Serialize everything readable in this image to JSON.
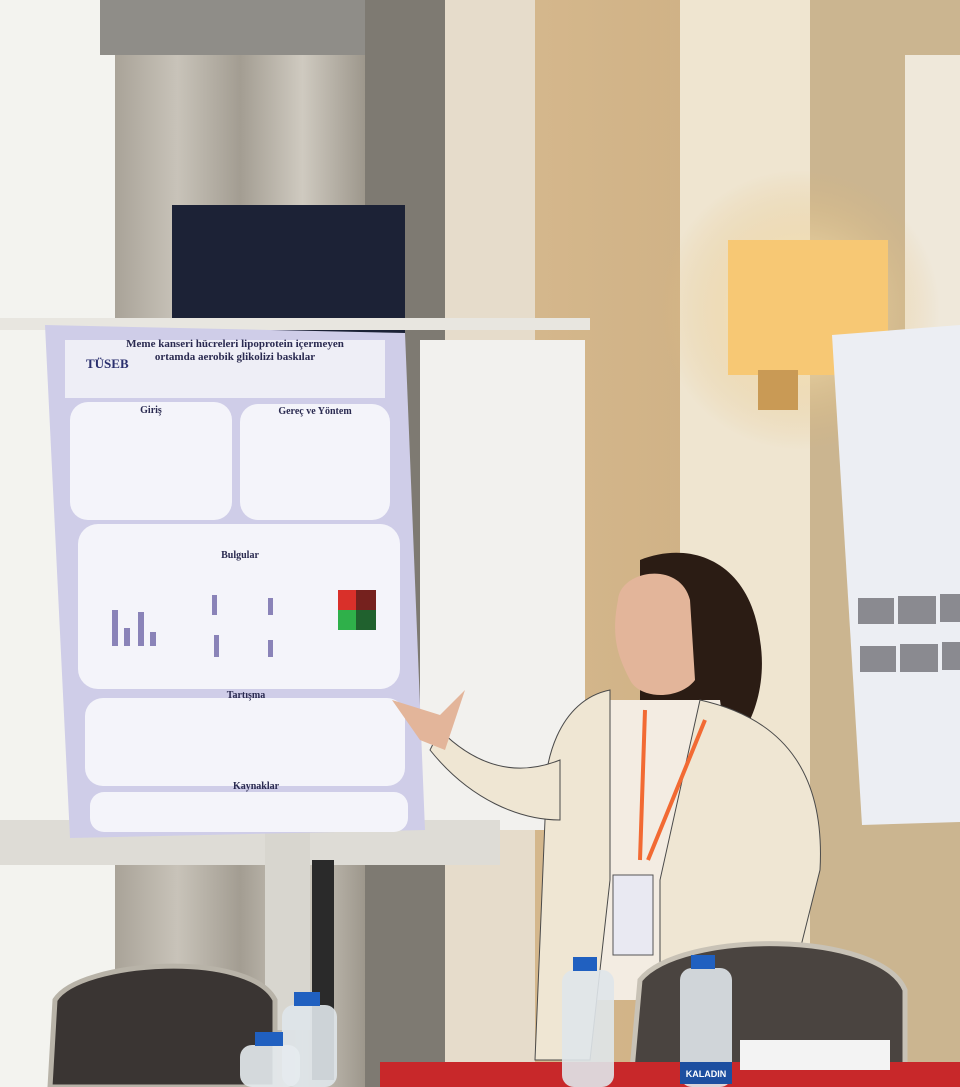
{
  "poster": {
    "logo": "TÜSEB",
    "title": "Meme kanseri hücreleri lipoprotein içermeyen ortamda aerobik glikolizi baskılar",
    "sections": [
      "Giriş",
      "Gereç ve Yöntem",
      "Bulgular",
      "Tartışma",
      "Kaynaklar"
    ]
  },
  "bottle_label": "KALADIN"
}
